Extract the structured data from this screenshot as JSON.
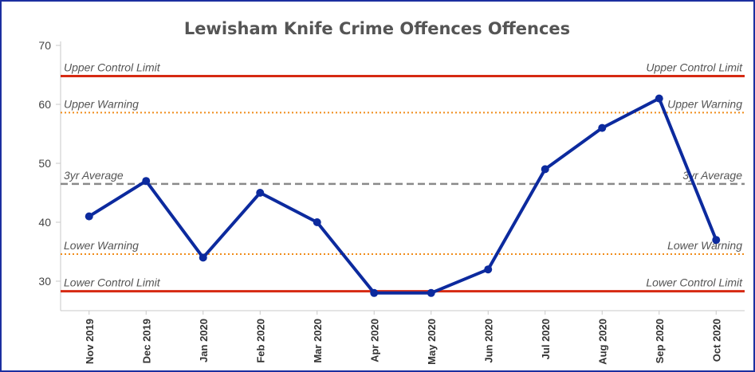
{
  "chart_data": {
    "type": "line",
    "title": "Lewisham Knife Crime Offences Offences",
    "xlabel": "",
    "ylabel": "",
    "categories": [
      "Nov 2019",
      "Dec 2019",
      "Jan 2020",
      "Feb 2020",
      "Mar 2020",
      "Apr 2020",
      "May 2020",
      "Jun 2020",
      "Jul 2020",
      "Aug 2020",
      "Sep 2020",
      "Oct 2020"
    ],
    "series": [
      {
        "values": [
          41,
          47,
          34,
          45,
          40,
          28,
          28,
          32,
          49,
          56,
          61,
          37
        ],
        "color": "#0c2a9e"
      }
    ],
    "ylim": [
      25,
      70
    ],
    "yticks": [
      30,
      40,
      50,
      60,
      70
    ],
    "grid": false,
    "reference_lines": [
      {
        "label": "Upper Control Limit",
        "value": 64.8,
        "style": "solid",
        "color": "#d62a12"
      },
      {
        "label": "Upper Warning",
        "value": 58.6,
        "style": "dotted",
        "color": "#f08c1a"
      },
      {
        "label": "3yr Average",
        "value": 46.5,
        "style": "dashed",
        "color": "#8a8a8a"
      },
      {
        "label": "Lower Warning",
        "value": 34.6,
        "style": "dotted",
        "color": "#f08c1a"
      },
      {
        "label": "Lower Control Limit",
        "value": 28.3,
        "style": "solid",
        "color": "#d62a12"
      }
    ]
  }
}
